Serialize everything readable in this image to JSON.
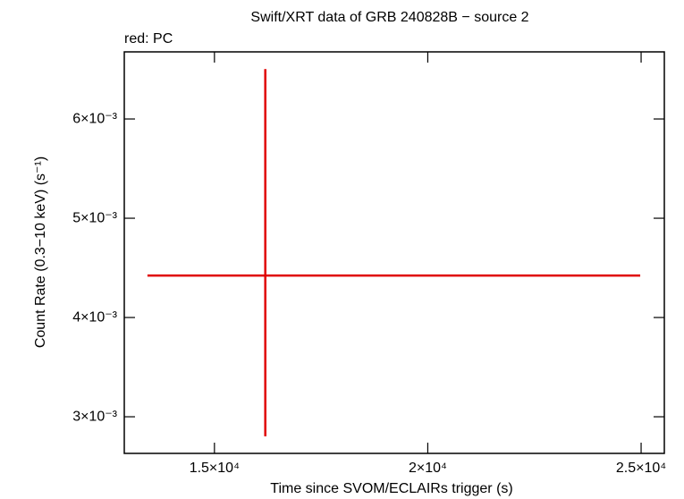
{
  "chart_data": {
    "type": "errorbar",
    "title": "Swift/XRT data of GRB 240828B − source 2",
    "annotation": "red: PC",
    "x_label": "Time since SVOM/ECLAIRs trigger (s)",
    "y_label": "Count Rate (0.3−10 keV) (s⁻¹)",
    "xlim": [
      12887,
      25544
    ],
    "ylim": [
      0.002631,
      0.006676
    ],
    "xticks": [
      {
        "value": 15000,
        "label": "1.5×10⁴"
      },
      {
        "value": 20000,
        "label": "2×10⁴"
      },
      {
        "value": 25000,
        "label": "2.5×10⁴"
      }
    ],
    "yticks": [
      {
        "value": 0.003,
        "label": "3×10⁻³"
      },
      {
        "value": 0.004,
        "label": "4×10⁻³"
      },
      {
        "value": 0.005,
        "label": "5×10⁻³"
      },
      {
        "value": 0.006,
        "label": "6×10⁻³"
      }
    ],
    "series": [
      {
        "color": "#e00000",
        "x": [
          16192
        ],
        "x_err_minus": [
          2762
        ],
        "x_err_plus": [
          8787
        ],
        "values": [
          0.004423
        ],
        "y_err_minus": [
          0.00162
        ],
        "y_err_plus": [
          0.00208
        ]
      }
    ]
  }
}
